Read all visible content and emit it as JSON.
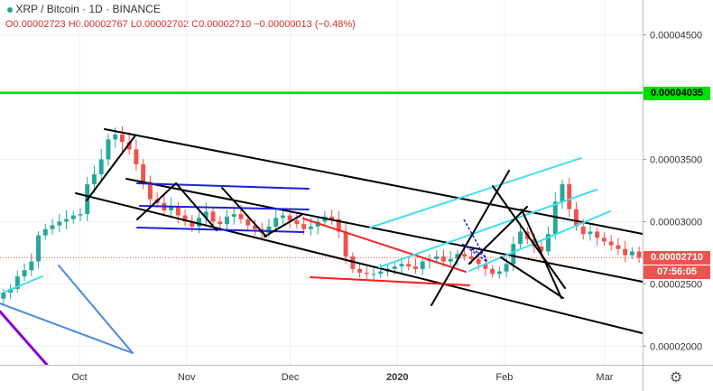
{
  "legend": {
    "symbol": "XRP / Bitcoin · 1D · BINANCE",
    "ohlc": "O0.00002723 H0.00002767 L0.00002702 C0.00002710 −0.00000013 (−0.48%)"
  },
  "price_labels": {
    "green_level": "0.00004035",
    "last_price": "0.00002710",
    "countdown": "07:56:05"
  },
  "colors": {
    "up": "#26a69a",
    "down": "#ef5350",
    "green_line": "#00e000",
    "last_price": "#ef5350",
    "countdown_bg": "#ef5350",
    "trend_black": "#000000",
    "trend_cyan": "#40e0f0",
    "trend_blue": "#1f1fdf",
    "trend_red": "#ff1f1f",
    "trend_steel": "#4a8ae0",
    "trend_purple": "#8a00d0"
  },
  "chart_data": {
    "type": "candlestick",
    "title": "XRP / Bitcoin · 1D · BINANCE",
    "y_axis": {
      "ticks": [
        "0.00004500",
        "0.00003500",
        "0.00003000",
        "0.00002500",
        "0.00002000"
      ],
      "range": [
        1.85e-05,
        4.78e-05
      ]
    },
    "x_axis": {
      "ticks": [
        "Oct",
        "Nov",
        "Dec",
        "2020",
        "Feb",
        "Mar"
      ],
      "start_date": "2019-09-08",
      "end_date": "2020-03-12"
    },
    "horizontal_level": 4.035e-05,
    "last_close": 2.71e-05,
    "closes_approx": [
      2.43e-05,
      2.46e-05,
      2.56e-05,
      2.61e-05,
      2.68e-05,
      2.89e-05,
      2.94e-05,
      2.97e-05,
      3e-05,
      3.02e-05,
      3.05e-05,
      3.06e-05,
      3.3e-05,
      3.38e-05,
      3.5e-05,
      3.66e-05,
      3.7e-05,
      3.64e-05,
      3.58e-05,
      3.46e-05,
      3.32e-05,
      3.18e-05,
      3.15e-05,
      3.09e-05,
      3.12e-05,
      3.05e-05,
      3e-05,
      2.96e-05,
      3.03e-05,
      3.08e-05,
      3e-05,
      2.98e-05,
      3.04e-05,
      3.06e-05,
      3.02e-05,
      2.97e-05,
      2.94e-05,
      2.91e-05,
      2.96e-05,
      3.03e-05,
      3.05e-05,
      3.01e-05,
      2.98e-05,
      2.94e-05,
      2.96e-05,
      3e-05,
      3.04e-05,
      3.02e-05,
      2.92e-05,
      2.72e-05,
      2.62e-05,
      2.59e-05,
      2.58e-05,
      2.58e-05,
      2.6e-05,
      2.62e-05,
      2.64e-05,
      2.66e-05,
      2.64e-05,
      2.62e-05,
      2.68e-05,
      2.7e-05,
      2.72e-05,
      2.68e-05,
      2.7e-05,
      2.74e-05,
      2.72e-05,
      2.7e-05,
      2.66e-05,
      2.62e-05,
      2.58e-05,
      2.6e-05,
      2.66e-05,
      2.82e-05,
      2.92e-05,
      2.86e-05,
      2.8e-05,
      2.76e-05,
      2.9e-05,
      3.16e-05,
      3.3e-05,
      3.1e-05,
      2.96e-05,
      2.9e-05,
      2.92e-05,
      2.87e-05,
      2.84e-05,
      2.81e-05,
      2.78e-05,
      2.73e-05,
      2.76e-05,
      2.71e-05
    ],
    "drawings": [
      {
        "color": "green_line",
        "kind": "horizontal",
        "price": 4.035e-05
      }
    ]
  }
}
